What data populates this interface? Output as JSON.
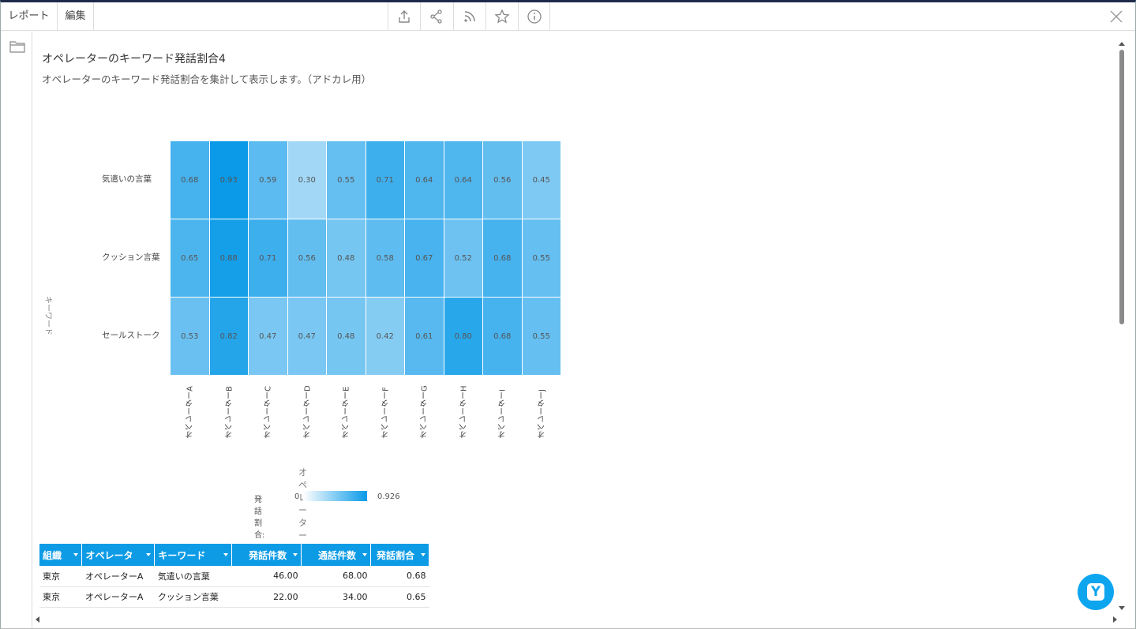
{
  "tabs": {
    "report": "レポート",
    "edit": "編集"
  },
  "toolbar": {
    "icons": [
      "export-icon",
      "share-icon",
      "rss-icon",
      "star-icon",
      "info-icon",
      "close-icon"
    ]
  },
  "page": {
    "title": "オペレーターのキーワード発話割合4",
    "subtitle": "オペレーターのキーワード発話割合を集計して表示します。（アドカレ用）"
  },
  "chart_data": {
    "type": "heatmap",
    "ylabel": "キーワード",
    "xlabel": "オペレーター",
    "rows": [
      "気遣いの言葉",
      "クッション言葉",
      "セールストーク"
    ],
    "columns": [
      "オペレーターA",
      "オペレーターB",
      "オペレーターC",
      "オペレーターD",
      "オペレーターE",
      "オペレーターF",
      "オペレーターG",
      "オペレーターH",
      "オペレーターI",
      "オペレーターJ"
    ],
    "values": [
      [
        0.68,
        0.93,
        0.59,
        0.3,
        0.55,
        0.71,
        0.64,
        0.64,
        0.56,
        0.45
      ],
      [
        0.65,
        0.88,
        0.71,
        0.56,
        0.48,
        0.58,
        0.67,
        0.52,
        0.68,
        0.55
      ],
      [
        0.53,
        0.82,
        0.47,
        0.47,
        0.48,
        0.42,
        0.61,
        0.8,
        0.68,
        0.55
      ]
    ],
    "legend": {
      "label": "発話割合:",
      "min": "0",
      "max": "0.926"
    },
    "color_low": "#ffffff",
    "color_high": "#0a9ae8"
  },
  "table": {
    "headers": [
      "組織",
      "オペレータ",
      "キーワード",
      "発話件数",
      "通話件数",
      "発話割合"
    ],
    "rows": [
      [
        "東京",
        "オペレーターA",
        "気遣いの言葉",
        "46.00",
        "68.00",
        "0.68"
      ],
      [
        "東京",
        "オペレーターA",
        "クッション言葉",
        "22.00",
        "34.00",
        "0.65"
      ]
    ]
  },
  "chat": {
    "label": "Y"
  }
}
